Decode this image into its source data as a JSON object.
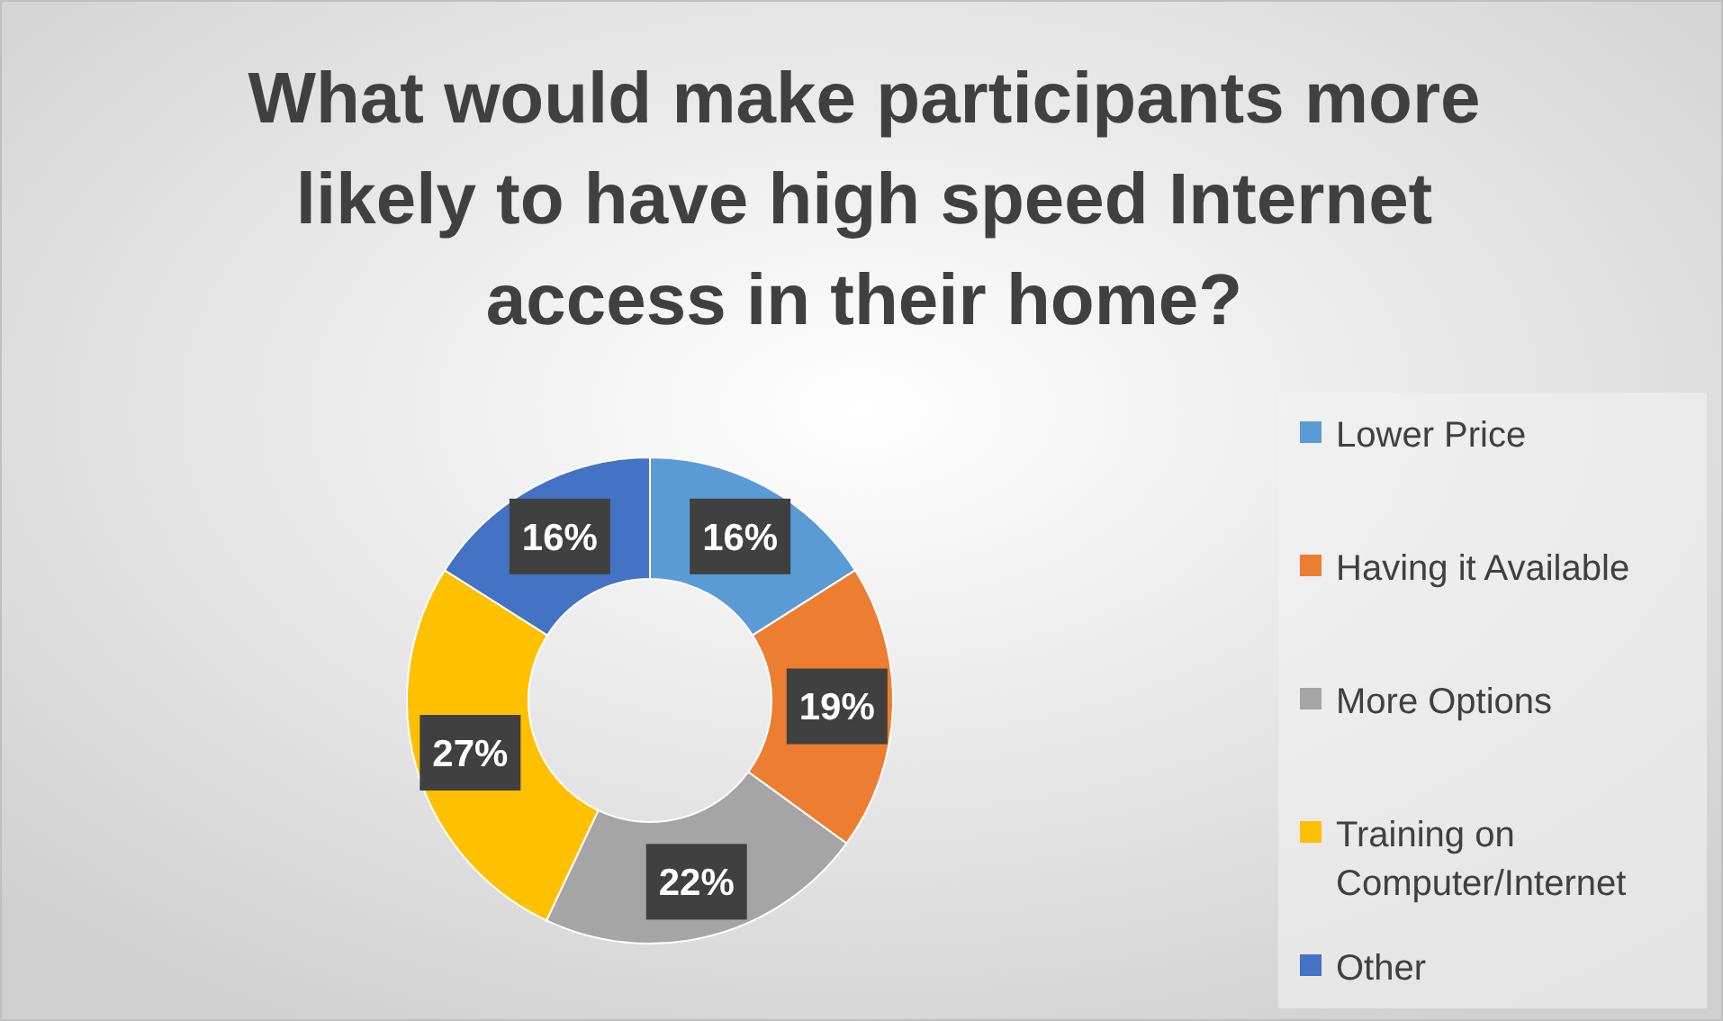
{
  "chart_data": {
    "type": "donut",
    "title": "What would make participants more likely to have high speed Internet access in their home?",
    "categories": [
      "Lower Price",
      "Having it Available",
      "More Options",
      "Training on Computer/Internet",
      "Other"
    ],
    "values": [
      16,
      19,
      22,
      27,
      16
    ],
    "colors": [
      "#5b9bd5",
      "#ed7d31",
      "#a5a5a5",
      "#ffc000",
      "#4472c4"
    ],
    "value_labels": [
      "16%",
      "19%",
      "22%",
      "27%",
      "16%"
    ],
    "legend": "right"
  }
}
